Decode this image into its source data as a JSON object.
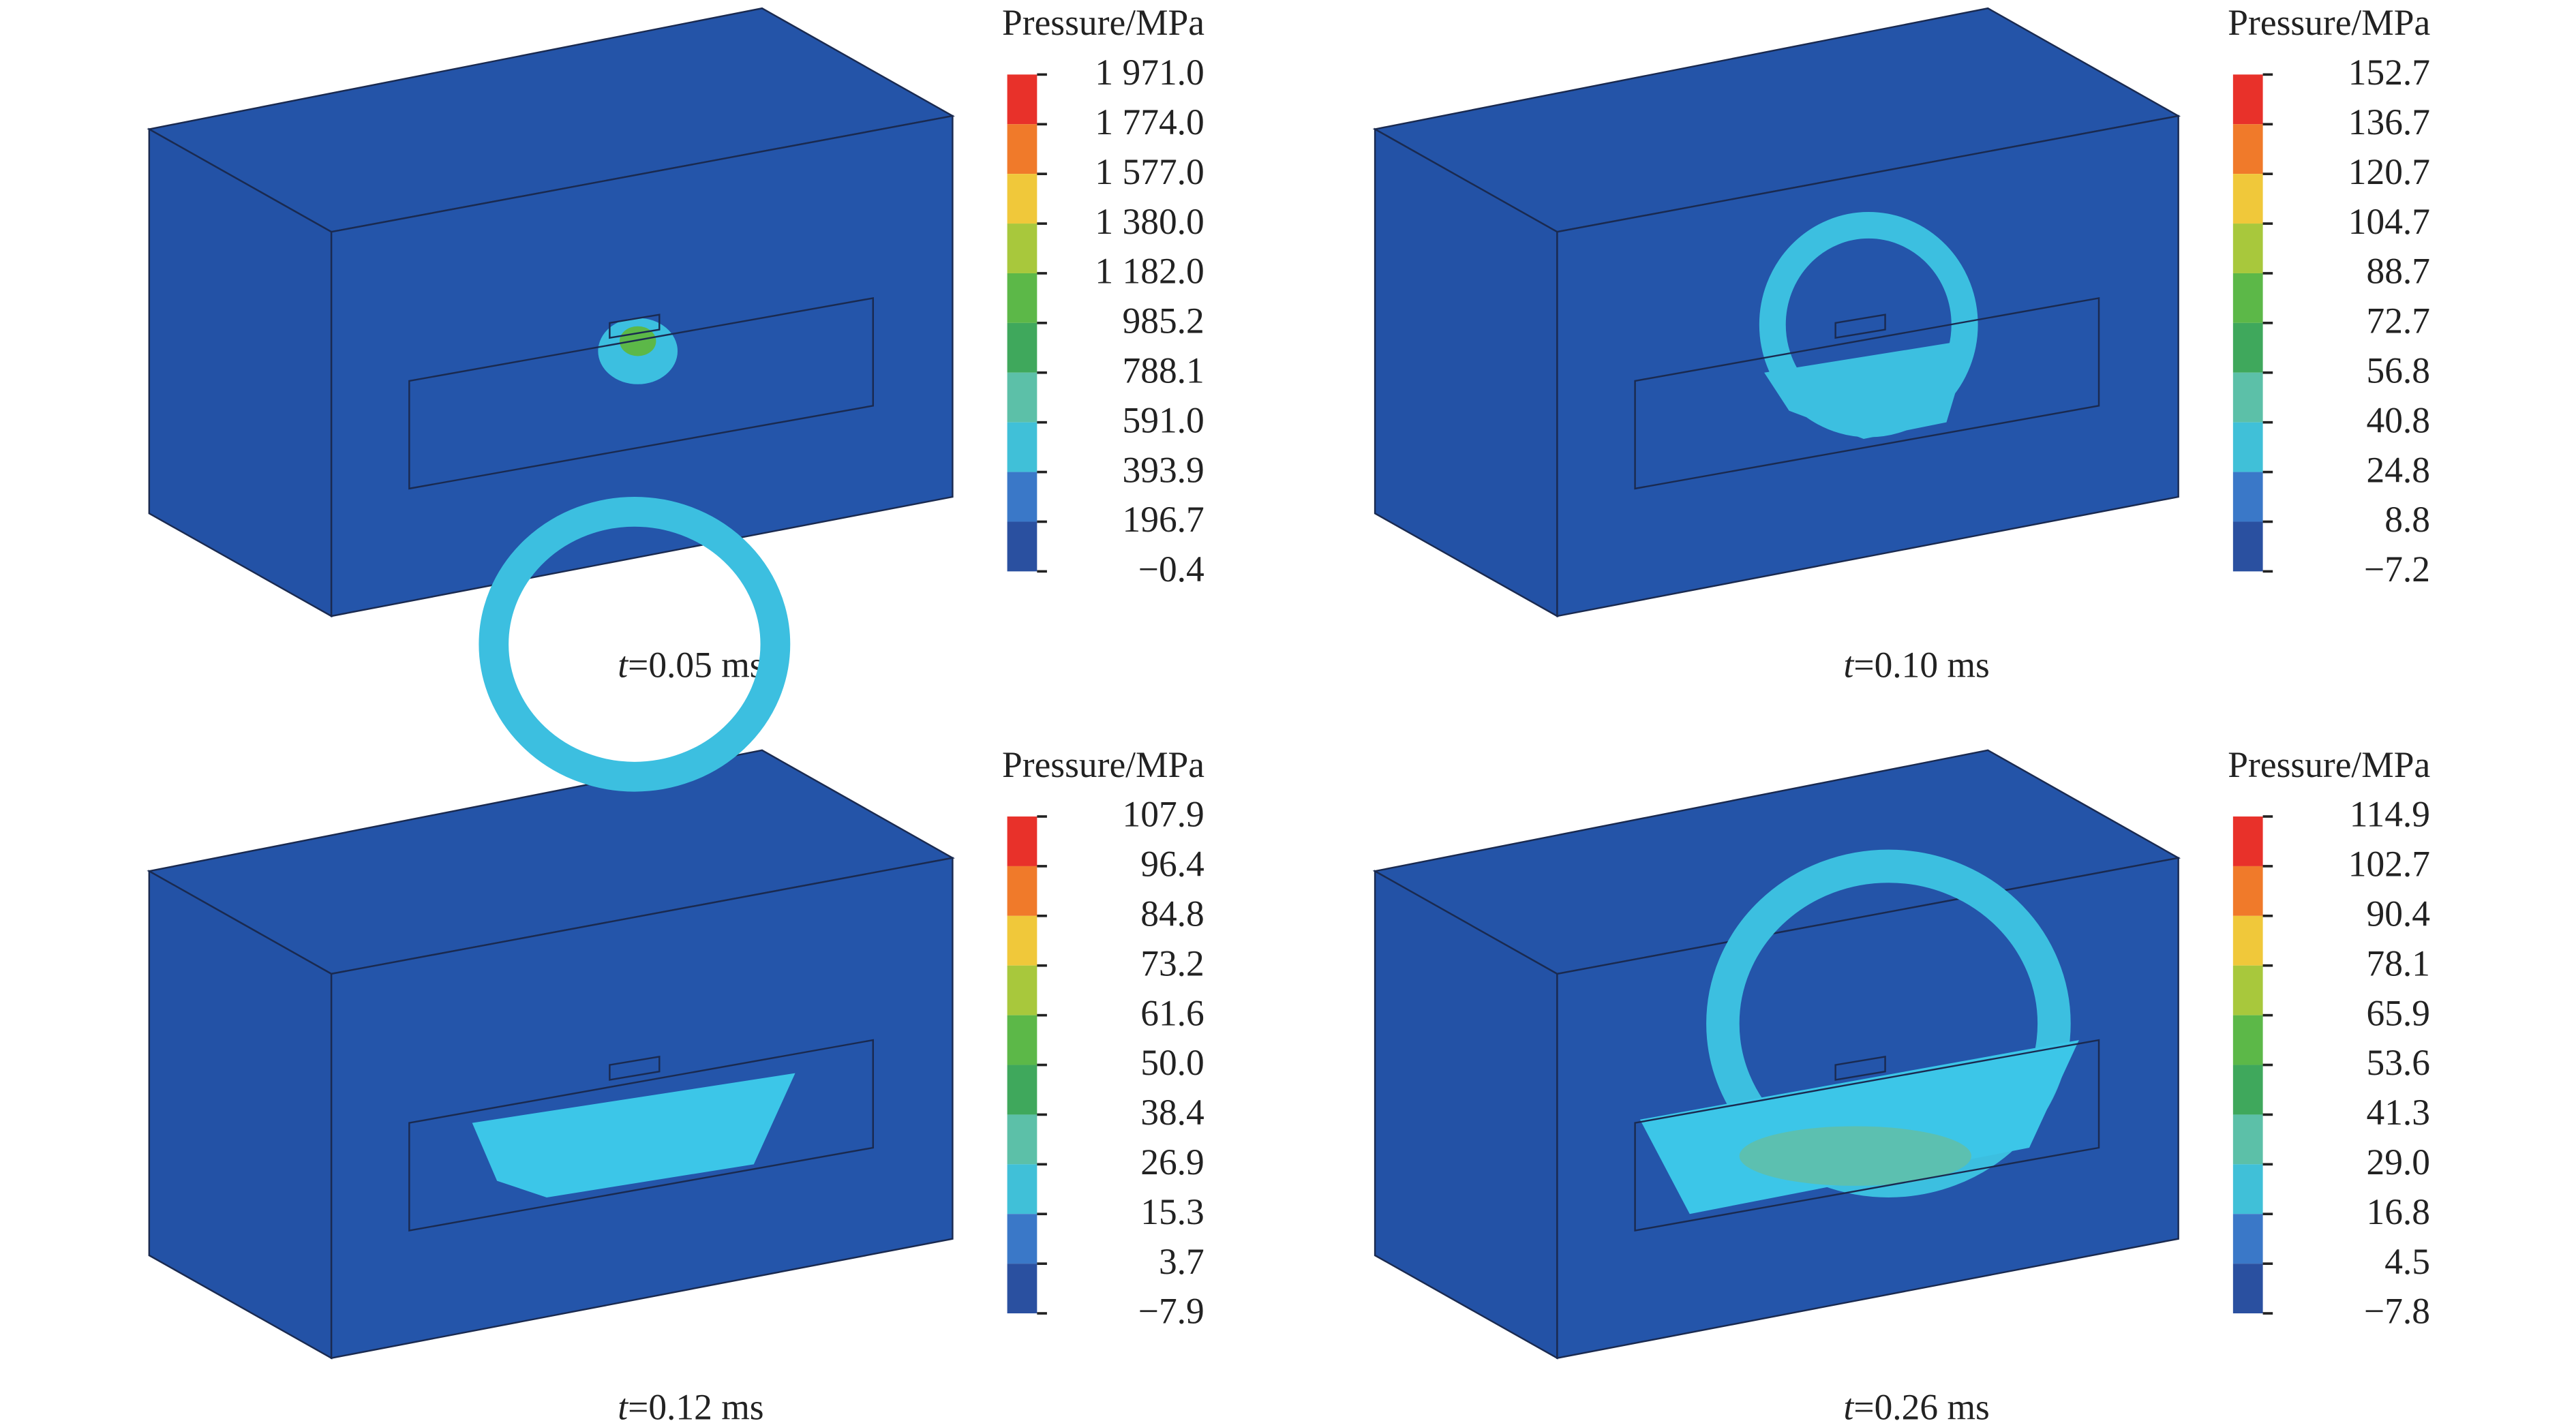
{
  "colorbar_colors": [
    "#e8312a",
    "#f07a2a",
    "#f0c83a",
    "#a8c83c",
    "#5cb848",
    "#3fa85c",
    "#5cc0a8",
    "#40c0d8",
    "#3a78c8",
    "#2a50a0"
  ],
  "panels": [
    {
      "legend_title": "Pressure/MPa",
      "labels": [
        "1 971.0",
        "1 774.0",
        "1 577.0",
        "1 380.0",
        "1 182.0",
        "985.2",
        "788.1",
        "591.0",
        "393.9",
        "196.7",
        "−0.4"
      ],
      "caption_var": "t",
      "caption_rest": "=0.05 ms"
    },
    {
      "legend_title": "Pressure/MPa",
      "labels": [
        "152.7",
        "136.7",
        "120.7",
        "104.7",
        "88.7",
        "72.7",
        "56.8",
        "40.8",
        "24.8",
        "8.8",
        "−7.2"
      ],
      "caption_var": "t",
      "caption_rest": "=0.10 ms"
    },
    {
      "legend_title": "Pressure/MPa",
      "labels": [
        "107.9",
        "96.4",
        "84.8",
        "73.2",
        "61.6",
        "50.0",
        "38.4",
        "26.9",
        "15.3",
        "3.7",
        "−7.9"
      ],
      "caption_var": "t",
      "caption_rest": "=0.12 ms"
    },
    {
      "legend_title": "Pressure/MPa",
      "labels": [
        "114.9",
        "102.7",
        "90.4",
        "78.1",
        "65.9",
        "53.6",
        "41.3",
        "29.0",
        "16.8",
        "4.5",
        "−7.8"
      ],
      "caption_var": "t",
      "caption_rest": "=0.26 ms"
    }
  ]
}
